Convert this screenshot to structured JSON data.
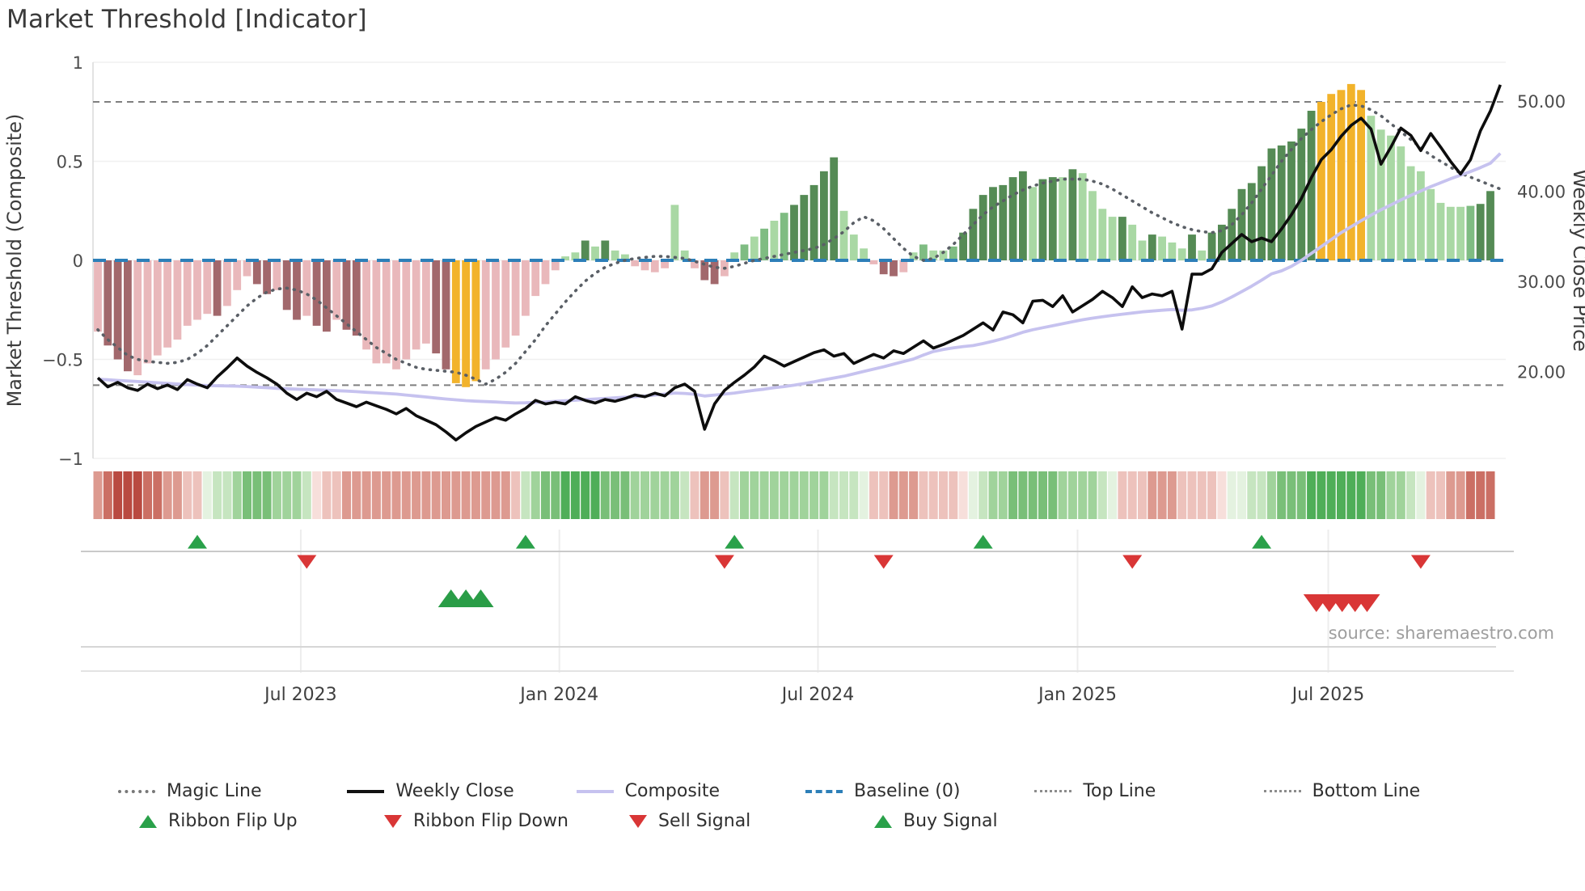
{
  "title": "Market Threshold [Indicator]",
  "source_text": "source: sharemaestro.com",
  "axes": {
    "left": {
      "label": "Market Threshold (Composite)",
      "ticks": [
        {
          "label": "1",
          "value": 1
        },
        {
          "label": "0.5",
          "value": 0.5
        },
        {
          "label": "0",
          "value": 0
        },
        {
          "label": "−0.5",
          "value": -0.5
        },
        {
          "label": "−1",
          "value": -1
        }
      ]
    },
    "right": {
      "label": "Weekly Close Price",
      "ticks": [
        {
          "label": "50.00",
          "value": 50
        },
        {
          "label": "40.00",
          "value": 40
        },
        {
          "label": "30.00",
          "value": 30
        },
        {
          "label": "20.00",
          "value": 20
        }
      ]
    },
    "x": {
      "ticks": [
        {
          "label": "Jul 2023",
          "week": 20.4
        },
        {
          "label": "Jan 2024",
          "week": 46.4
        },
        {
          "label": "Jul 2024",
          "week": 72.4
        },
        {
          "label": "Jan 2025",
          "week": 98.5
        },
        {
          "label": "Jul 2025",
          "week": 123.7
        }
      ]
    }
  },
  "chart_data": {
    "type": "combo-bar-line-heatmap",
    "x_unit": "week",
    "n_weeks": 141,
    "ylim_left": [
      -1,
      1
    ],
    "right_axis_ticks": [
      20,
      30,
      40,
      50
    ],
    "baseline": 0,
    "top_line": 0.8,
    "bottom_line": -0.63,
    "bars": {
      "name": "Composite histogram",
      "values": [
        -0.36,
        -0.43,
        -0.5,
        -0.56,
        -0.58,
        -0.52,
        -0.48,
        -0.44,
        -0.4,
        -0.33,
        -0.3,
        -0.27,
        -0.28,
        -0.23,
        -0.15,
        -0.08,
        -0.12,
        -0.17,
        -0.15,
        -0.25,
        -0.3,
        -0.28,
        -0.33,
        -0.36,
        -0.3,
        -0.35,
        -0.38,
        -0.45,
        -0.52,
        -0.52,
        -0.55,
        -0.5,
        -0.45,
        -0.42,
        -0.47,
        -0.55,
        -0.62,
        -0.64,
        -0.61,
        -0.55,
        -0.5,
        -0.44,
        -0.38,
        -0.28,
        -0.18,
        -0.12,
        -0.05,
        0.02,
        0.04,
        0.1,
        0.07,
        0.1,
        0.05,
        0.03,
        -0.03,
        -0.05,
        -0.06,
        -0.04,
        0.28,
        0.05,
        -0.04,
        -0.1,
        -0.12,
        -0.08,
        0.04,
        0.08,
        0.12,
        0.16,
        0.2,
        0.24,
        0.28,
        0.33,
        0.38,
        0.45,
        0.52,
        0.25,
        0.13,
        0.06,
        -0.02,
        -0.07,
        -0.08,
        -0.06,
        0.04,
        0.08,
        0.05,
        0.05,
        0.07,
        0.14,
        0.26,
        0.33,
        0.37,
        0.38,
        0.42,
        0.45,
        0.37,
        0.41,
        0.42,
        0.42,
        0.46,
        0.44,
        0.35,
        0.26,
        0.22,
        0.22,
        0.18,
        0.1,
        0.13,
        0.12,
        0.09,
        0.06,
        0.13,
        0.05,
        0.14,
        0.18,
        0.26,
        0.36,
        0.39,
        0.475,
        0.565,
        0.58,
        0.6,
        0.665,
        0.755,
        0.8,
        0.84,
        0.86,
        0.89,
        0.86,
        0.73,
        0.66,
        0.63,
        0.575,
        0.475,
        0.45,
        0.36,
        0.29,
        0.27,
        0.27,
        0.275,
        0.285,
        0.35
      ],
      "classes": [
        "P",
        "D",
        "D",
        "D",
        "P",
        "P",
        "P",
        "P",
        "P",
        "P",
        "P",
        "P",
        "D",
        "P",
        "P",
        "P",
        "D",
        "D",
        "P",
        "D",
        "D",
        "P",
        "D",
        "D",
        "P",
        "D",
        "D",
        "P",
        "P",
        "P",
        "P",
        "P",
        "P",
        "P",
        "D",
        "D",
        "G",
        "G",
        "G",
        "P",
        "P",
        "P",
        "P",
        "P",
        "P",
        "P",
        "P",
        "g",
        "g",
        "F",
        "g",
        "F",
        "g",
        "g",
        "P",
        "P",
        "P",
        "P",
        "g",
        "g",
        "P",
        "D",
        "D",
        "P",
        "g",
        "M",
        "g",
        "M",
        "g",
        "M",
        "F",
        "F",
        "F",
        "F",
        "F",
        "g",
        "g",
        "g",
        "P",
        "D",
        "D",
        "P",
        "g",
        "M",
        "g",
        "g",
        "M",
        "F",
        "F",
        "F",
        "F",
        "F",
        "F",
        "F",
        "g",
        "F",
        "F",
        "g",
        "F",
        "g",
        "g",
        "g",
        "g",
        "F",
        "g",
        "g",
        "F",
        "g",
        "g",
        "g",
        "F",
        "g",
        "F",
        "F",
        "F",
        "F",
        "F",
        "F",
        "F",
        "F",
        "F",
        "F",
        "F",
        "G",
        "G",
        "G",
        "G",
        "G",
        "g",
        "g",
        "g",
        "g",
        "g",
        "g",
        "g",
        "g",
        "g",
        "g",
        "M",
        "F",
        "F"
      ]
    },
    "series": [
      {
        "name": "Magic Line",
        "axis": "left",
        "style": "dotted-gray",
        "values": [
          -0.35,
          -0.4,
          -0.44,
          -0.48,
          -0.5,
          -0.51,
          -0.515,
          -0.52,
          -0.515,
          -0.5,
          -0.47,
          -0.43,
          -0.38,
          -0.33,
          -0.28,
          -0.23,
          -0.19,
          -0.16,
          -0.145,
          -0.14,
          -0.15,
          -0.17,
          -0.2,
          -0.24,
          -0.28,
          -0.32,
          -0.36,
          -0.4,
          -0.44,
          -0.47,
          -0.5,
          -0.52,
          -0.54,
          -0.55,
          -0.555,
          -0.56,
          -0.565,
          -0.58,
          -0.6,
          -0.625,
          -0.6,
          -0.565,
          -0.52,
          -0.46,
          -0.4,
          -0.33,
          -0.27,
          -0.21,
          -0.155,
          -0.105,
          -0.065,
          -0.035,
          -0.015,
          0.0,
          0.01,
          0.015,
          0.02,
          0.02,
          0.015,
          0.01,
          -0.005,
          -0.02,
          -0.035,
          -0.04,
          -0.03,
          -0.015,
          0.0,
          0.01,
          0.02,
          0.03,
          0.04,
          0.05,
          0.06,
          0.08,
          0.11,
          0.145,
          0.19,
          0.22,
          0.2,
          0.16,
          0.11,
          0.06,
          0.02,
          0.0,
          0.01,
          0.04,
          0.08,
          0.13,
          0.18,
          0.23,
          0.27,
          0.3,
          0.33,
          0.355,
          0.375,
          0.39,
          0.4,
          0.41,
          0.41,
          0.41,
          0.4,
          0.385,
          0.36,
          0.33,
          0.3,
          0.27,
          0.24,
          0.215,
          0.19,
          0.17,
          0.155,
          0.145,
          0.14,
          0.15,
          0.18,
          0.23,
          0.29,
          0.36,
          0.43,
          0.5,
          0.56,
          0.615,
          0.66,
          0.7,
          0.735,
          0.765,
          0.785,
          0.78,
          0.76,
          0.73,
          0.69,
          0.65,
          0.61,
          0.57,
          0.53,
          0.5,
          0.47,
          0.44,
          0.42,
          0.4,
          0.38,
          0.36
        ]
      },
      {
        "name": "Weekly Close",
        "axis": "right",
        "style": "solid-black",
        "values": [
          19.3,
          18.3,
          18.8,
          18.2,
          17.9,
          18.6,
          18.1,
          18.5,
          18.0,
          19.1,
          18.6,
          18.2,
          19.4,
          20.4,
          21.5,
          20.6,
          19.9,
          19.3,
          18.6,
          17.6,
          16.9,
          17.6,
          17.2,
          17.8,
          16.9,
          16.5,
          16.1,
          16.6,
          16.2,
          15.8,
          15.3,
          15.9,
          15.1,
          14.6,
          14.1,
          13.3,
          12.4,
          13.2,
          13.9,
          14.4,
          14.9,
          14.6,
          15.3,
          15.9,
          16.8,
          16.4,
          16.6,
          16.4,
          17.2,
          16.8,
          16.5,
          16.9,
          16.7,
          17.0,
          17.4,
          17.2,
          17.6,
          17.3,
          18.2,
          18.6,
          17.8,
          13.6,
          16.4,
          17.9,
          18.8,
          19.6,
          20.5,
          21.7,
          21.2,
          20.6,
          21.1,
          21.6,
          22.1,
          22.4,
          21.7,
          22.0,
          20.9,
          21.4,
          21.9,
          21.5,
          22.3,
          22.0,
          22.7,
          23.4,
          22.6,
          23.0,
          23.5,
          24.0,
          24.7,
          25.4,
          24.6,
          26.6,
          26.3,
          25.4,
          27.8,
          27.9,
          27.2,
          28.4,
          26.6,
          27.3,
          28.0,
          28.9,
          28.2,
          27.2,
          29.4,
          28.2,
          28.6,
          28.4,
          28.9,
          24.7,
          30.8,
          30.8,
          31.4,
          33.2,
          34.2,
          35.2,
          34.4,
          34.8,
          34.4,
          35.8,
          37.4,
          39.2,
          41.5,
          43.5,
          44.6,
          46.1,
          47.3,
          48.1,
          46.9,
          43.0,
          44.9,
          47.0,
          46.2,
          44.5,
          46.4,
          44.9,
          43.3,
          41.9,
          43.5,
          46.7,
          48.9,
          51.8
        ]
      },
      {
        "name": "Composite",
        "axis": "left",
        "style": "solid-lavender",
        "values": [
          -0.6,
          -0.603,
          -0.606,
          -0.609,
          -0.612,
          -0.615,
          -0.618,
          -0.621,
          -0.624,
          -0.627,
          -0.63,
          -0.632,
          -0.633,
          -0.634,
          -0.635,
          -0.637,
          -0.64,
          -0.643,
          -0.646,
          -0.648,
          -0.65,
          -0.652,
          -0.654,
          -0.656,
          -0.658,
          -0.66,
          -0.663,
          -0.666,
          -0.669,
          -0.672,
          -0.675,
          -0.68,
          -0.685,
          -0.69,
          -0.695,
          -0.7,
          -0.704,
          -0.708,
          -0.711,
          -0.713,
          -0.715,
          -0.718,
          -0.72,
          -0.719,
          -0.717,
          -0.715,
          -0.712,
          -0.709,
          -0.706,
          -0.703,
          -0.7,
          -0.697,
          -0.694,
          -0.691,
          -0.688,
          -0.685,
          -0.68,
          -0.675,
          -0.67,
          -0.672,
          -0.676,
          -0.685,
          -0.68,
          -0.675,
          -0.67,
          -0.663,
          -0.656,
          -0.65,
          -0.643,
          -0.637,
          -0.63,
          -0.622,
          -0.613,
          -0.603,
          -0.594,
          -0.585,
          -0.573,
          -0.561,
          -0.549,
          -0.537,
          -0.524,
          -0.511,
          -0.498,
          -0.478,
          -0.46,
          -0.45,
          -0.442,
          -0.435,
          -0.43,
          -0.42,
          -0.408,
          -0.395,
          -0.38,
          -0.363,
          -0.35,
          -0.34,
          -0.33,
          -0.32,
          -0.31,
          -0.3,
          -0.292,
          -0.285,
          -0.278,
          -0.272,
          -0.266,
          -0.26,
          -0.256,
          -0.252,
          -0.248,
          -0.252,
          -0.25,
          -0.242,
          -0.23,
          -0.21,
          -0.185,
          -0.158,
          -0.13,
          -0.1,
          -0.068,
          -0.053,
          -0.03,
          0.0,
          0.035,
          0.07,
          0.105,
          0.14,
          0.17,
          0.2,
          0.228,
          0.255,
          0.28,
          0.305,
          0.328,
          0.35,
          0.372,
          0.392,
          0.412,
          0.43,
          0.448,
          0.468,
          0.49,
          0.54
        ]
      }
    ],
    "ribbon": [
      "r2",
      "r3",
      "r4",
      "r4",
      "r4",
      "r3",
      "r3",
      "r2",
      "r2",
      "r1",
      "r1",
      "g0",
      "g1",
      "g1",
      "g2",
      "g3",
      "g3",
      "g3",
      "g2",
      "g2",
      "g2",
      "g1",
      "r0",
      "r1",
      "r1",
      "r2",
      "r2",
      "r2",
      "r2",
      "r2",
      "r2",
      "r2",
      "r2",
      "r2",
      "r2",
      "r2",
      "r2",
      "r2",
      "r2",
      "r2",
      "r2",
      "r2",
      "r1",
      "g1",
      "g2",
      "g3",
      "g3",
      "g4",
      "g4",
      "g4",
      "g4",
      "g3",
      "g3",
      "g3",
      "g2",
      "g2",
      "g2",
      "g2",
      "g2",
      "g1",
      "r1",
      "r2",
      "r2",
      "r1",
      "g1",
      "g2",
      "g2",
      "g2",
      "g2",
      "g2",
      "g2",
      "g2",
      "g2",
      "g2",
      "g1",
      "g1",
      "g1",
      "g0",
      "r1",
      "r1",
      "r2",
      "r2",
      "r2",
      "r1",
      "r1",
      "r1",
      "r1",
      "r0",
      "g0",
      "g1",
      "g2",
      "g2",
      "g3",
      "g3",
      "g3",
      "g3",
      "g3",
      "g2",
      "g2",
      "g2",
      "g2",
      "g1",
      "g0",
      "r1",
      "r1",
      "r1",
      "r2",
      "r2",
      "r2",
      "r1",
      "r1",
      "r1",
      "r1",
      "r0",
      "g0",
      "g0",
      "g1",
      "g1",
      "g2",
      "g3",
      "g3",
      "g3",
      "g4",
      "g4",
      "g4",
      "g4",
      "g4",
      "g4",
      "g3",
      "g3",
      "g2",
      "g2",
      "g1",
      "g0",
      "r1",
      "r1",
      "r2",
      "r2",
      "r3",
      "r3",
      "r3"
    ],
    "signals": {
      "ribbon_flip_up_weeks": [
        10,
        43,
        64,
        89,
        117
      ],
      "ribbon_flip_down_weeks": [
        21,
        63,
        79,
        104,
        133
      ],
      "buy_signal_weeks": [
        35.5,
        37,
        38.5
      ],
      "sell_signal_weeks": [
        122.5,
        123.8,
        125.1,
        126.4,
        127.6
      ]
    }
  },
  "legend": {
    "row1": [
      {
        "label": "Magic Line"
      },
      {
        "label": "Weekly Close"
      },
      {
        "label": "Composite"
      },
      {
        "label": "Baseline (0)"
      },
      {
        "label": "Top Line"
      },
      {
        "label": "Bottom Line"
      }
    ],
    "row2": [
      {
        "label": "Ribbon Flip Up"
      },
      {
        "label": "Ribbon Flip Down"
      },
      {
        "label": "Sell Signal"
      },
      {
        "label": "Buy Signal"
      }
    ]
  },
  "colors": {
    "bars": {
      "P": "#e9b8bb",
      "D": "#a2686c",
      "G": "#f2b32b",
      "g": "#a9d8a4",
      "M": "#7fbc82",
      "F": "#558b55"
    },
    "ribbon": {
      "r4": "#b94a41",
      "r3": "#cb6f64",
      "r2": "#dd9a90",
      "r1": "#edc2bc",
      "r0": "#f7dfdb",
      "g0": "#e4f2e0",
      "g1": "#c6e5c0",
      "g2": "#a0d39b",
      "g3": "#79bf78",
      "g4": "#4fae58"
    },
    "magic_line": "#5a5f66",
    "weekly_close": "#0d0d0d",
    "composite": "#c6c2ef",
    "baseline": "#2d7fb8",
    "threshold_lines": "#7f7f7f",
    "flip_up": "#2aa14a",
    "flip_down": "#d93636",
    "buy_signal": "#2a9d47",
    "sell_signal": "#d93636"
  }
}
